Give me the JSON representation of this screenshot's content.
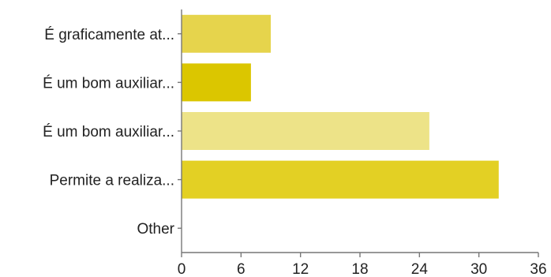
{
  "chart_data": {
    "type": "bar",
    "orientation": "horizontal",
    "categories": [
      "É graficamente at...",
      "É um bom auxiliar...",
      "É um bom auxiliar...",
      "Permite a realiza...",
      "Other"
    ],
    "values": [
      9,
      7,
      25,
      32,
      0
    ],
    "colors": [
      "#e6d44c",
      "#dbc600",
      "#ede388",
      "#e3d024",
      "#e3d024"
    ],
    "xticks": [
      0,
      6,
      12,
      18,
      24,
      30,
      36
    ],
    "xlim": [
      0,
      36
    ],
    "grid": false,
    "legend": false
  }
}
